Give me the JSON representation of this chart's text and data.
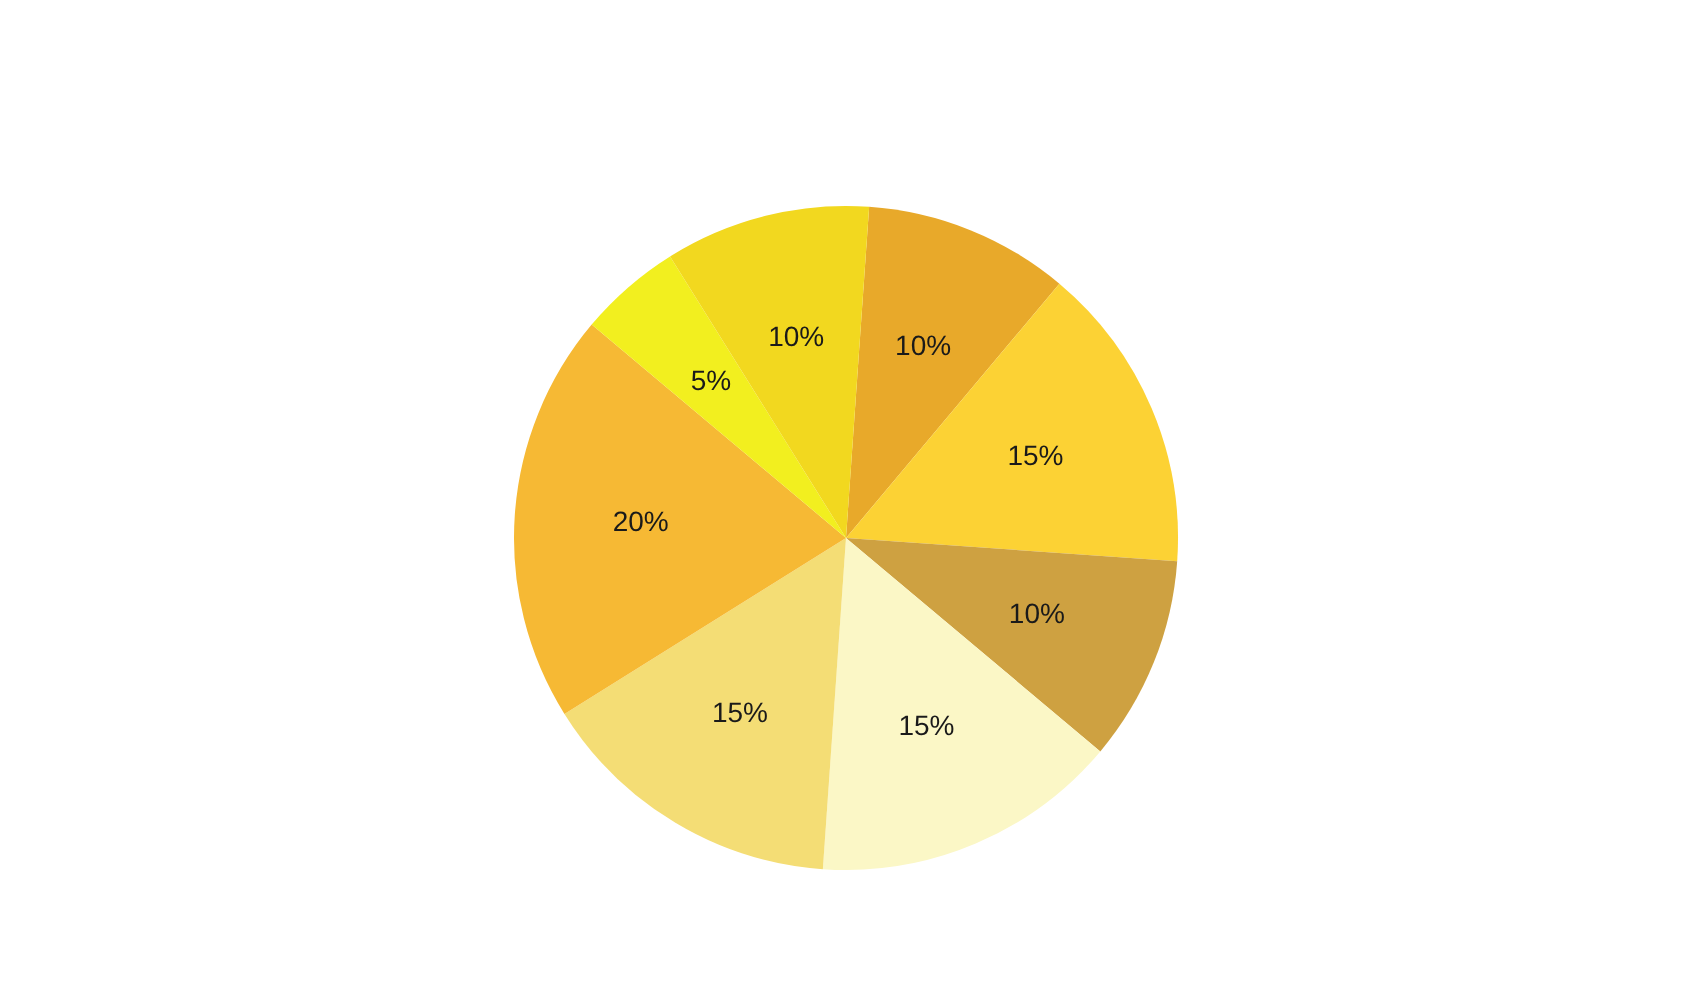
{
  "chart_data": {
    "type": "pie",
    "categories": [
      null,
      null,
      null,
      null,
      null,
      null,
      null,
      null
    ],
    "values": [
      10,
      15,
      10,
      15,
      15,
      20,
      5,
      10
    ],
    "colors": [
      "#e8a92a",
      "#fcd234",
      "#cea141",
      "#fbf7c6",
      "#f4dd75",
      "#f6b934",
      "#f2ef1f",
      "#f2d81f"
    ],
    "value_labels": [
      "10%",
      "15%",
      "10%",
      "15%",
      "15%",
      "20%",
      "5%",
      "10%"
    ],
    "legend": false
  }
}
